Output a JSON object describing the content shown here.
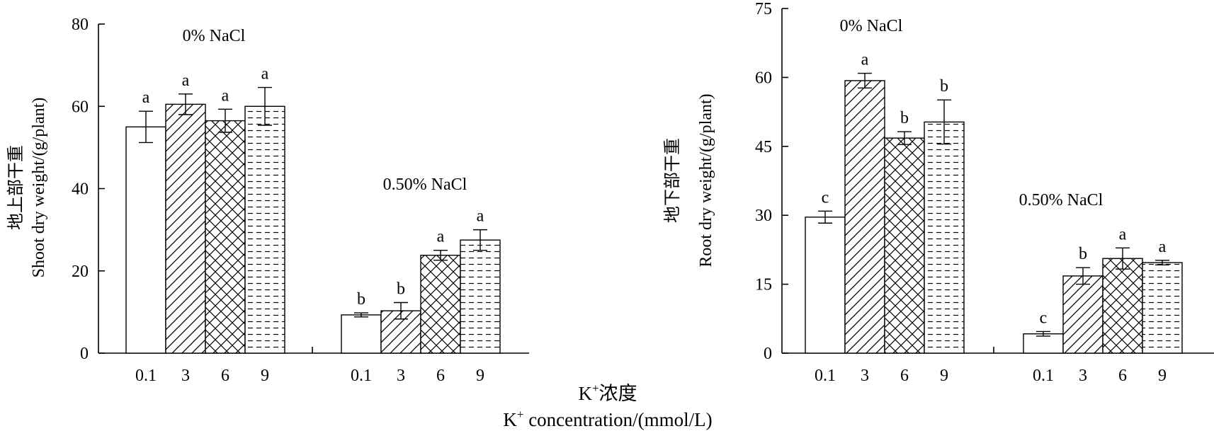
{
  "xaxis": {
    "title_cn": "浓度",
    "title_line2": "concentration/(mmol/L)",
    "k_symbol": "K",
    "k_superscript": "+"
  },
  "chart_data": [
    {
      "type": "bar",
      "ylabel_cn": "地上部干重",
      "ylabel": "Shoot dry weight/(g/plant)",
      "ylim": [
        0,
        80
      ],
      "yticks": [
        0,
        20,
        40,
        60,
        80
      ],
      "categories": [
        "0.1",
        "3",
        "6",
        "9"
      ],
      "groups": [
        {
          "label": "0% NaCl",
          "values": [
            55,
            60.5,
            56.5,
            60
          ],
          "errors": [
            3.8,
            2.5,
            2.8,
            4.6
          ],
          "letters": [
            "a",
            "a",
            "a",
            "a"
          ]
        },
        {
          "label": "0.50% NaCl",
          "values": [
            9.3,
            10.3,
            23.8,
            27.5
          ],
          "errors": [
            0.5,
            2,
            1.2,
            2.5
          ],
          "letters": [
            "b",
            "b",
            "a",
            "a"
          ]
        }
      ],
      "patterns": [
        "blank",
        "diagonal",
        "crosshatch",
        "dashes"
      ]
    },
    {
      "type": "bar",
      "ylabel_cn": "地下部干重",
      "ylabel": "Root dry weight/(g/plant)",
      "ylim": [
        0,
        75
      ],
      "yticks": [
        0,
        15,
        30,
        45,
        60,
        75
      ],
      "categories": [
        "0.1",
        "3",
        "6",
        "9"
      ],
      "groups": [
        {
          "label": "0% NaCl",
          "values": [
            29.6,
            59.3,
            46.8,
            50.3
          ],
          "errors": [
            1.3,
            1.6,
            1.4,
            4.8
          ],
          "letters": [
            "c",
            "a",
            "b",
            "b"
          ]
        },
        {
          "label": "0.50% NaCl",
          "values": [
            4.2,
            16.8,
            20.6,
            19.7
          ],
          "errors": [
            0.5,
            1.8,
            2.3,
            0.5
          ],
          "letters": [
            "c",
            "b",
            "a",
            "a"
          ]
        }
      ],
      "patterns": [
        "blank",
        "diagonal",
        "crosshatch",
        "dashes"
      ]
    }
  ]
}
